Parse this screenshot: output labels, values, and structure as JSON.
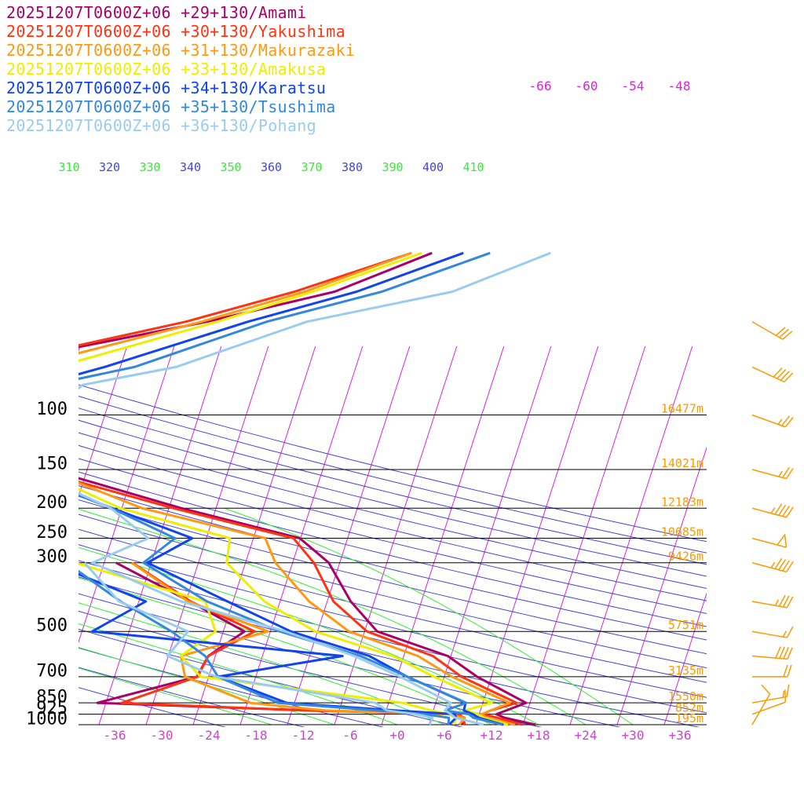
{
  "chart_data": {
    "type": "line",
    "chart_kind": "skew-T log-P sounding",
    "yscale": "log",
    "pressure_levels": [
      100,
      150,
      200,
      250,
      300,
      500,
      700,
      850,
      925,
      1000
    ],
    "pressure_labels": [
      "100",
      "150",
      "200",
      "250",
      "300",
      "500",
      "700",
      "850",
      "925",
      "1000"
    ],
    "heights": [
      {
        "p": 100,
        "label": "16477m"
      },
      {
        "p": 150,
        "label": "14021m"
      },
      {
        "p": 200,
        "label": "12183m"
      },
      {
        "p": 250,
        "label": "10685m"
      },
      {
        "p": 300,
        "label": "9426m"
      },
      {
        "p": 500,
        "label": "5751m"
      },
      {
        "p": 700,
        "label": "3135m"
      },
      {
        "p": 850,
        "label": "1550m"
      },
      {
        "p": 925,
        "label": "852m"
      },
      {
        "p": 1000,
        "label": "195m"
      }
    ],
    "temperature_ticks": [
      "-36",
      "-30",
      "-24",
      "-18",
      "-12",
      "-6",
      "+0",
      "+6",
      "+12",
      "+18",
      "+24",
      "+30",
      "+36"
    ],
    "upper_isotherm_labels": [
      "-66",
      "-60",
      "-54",
      "-48"
    ],
    "theta_labels": [
      "310",
      "320",
      "330",
      "340",
      "350",
      "360",
      "370",
      "380",
      "390",
      "400",
      "410"
    ],
    "grid": true,
    "legend_position": "top-left",
    "colors": {
      "isotherm": "#dd22dd",
      "dry_adiabat": "#4444dd",
      "moist_adiabat": "#33ee33",
      "isobar": "#000000",
      "height_label": "#ff9900",
      "wind_barb": "#ff9900",
      "temperature_tick": "#cc44cc",
      "pressure_label": "#000000"
    },
    "series": [
      {
        "name": "20251207T0600Z+06 +29+130/Amami",
        "color": "#aa0066",
        "temperature": [
          [
            1000,
            17.6
          ],
          [
            950,
            13.4
          ],
          [
            925,
            12.2
          ],
          [
            900,
            13.3
          ],
          [
            850,
            15.5
          ],
          [
            700,
            8.2
          ],
          [
            600,
            3.6
          ],
          [
            500,
            -6.4
          ],
          [
            400,
            -11.0
          ],
          [
            300,
            -15.4
          ],
          [
            250,
            -20.1
          ],
          [
            200,
            -36.4
          ],
          [
            150,
            -54.9
          ],
          [
            100,
            -67.0
          ],
          [
            80,
            -70.8
          ],
          [
            70,
            -68.2
          ],
          [
            50,
            -40.8
          ],
          [
            40,
            -25.8
          ],
          [
            30,
            -15.0
          ]
        ],
        "dewpoint": [
          [
            1000,
            8.2
          ],
          [
            950,
            8.3
          ],
          [
            925,
            7.1
          ],
          [
            900,
            -11.6
          ],
          [
            850,
            -39.1
          ],
          [
            700,
            -27.5
          ],
          [
            600,
            -26.9
          ],
          [
            500,
            -23.3
          ],
          [
            400,
            -31.5
          ],
          [
            300,
            -42.5
          ]
        ]
      },
      {
        "name": "20251207T0600Z+06 +30+130/Yakushima",
        "color": "#ff3311",
        "temperature": [
          [
            1000,
            15.9
          ],
          [
            950,
            12.5
          ],
          [
            925,
            10.5
          ],
          [
            900,
            11.3
          ],
          [
            850,
            14.3
          ],
          [
            700,
            6.2
          ],
          [
            600,
            1.7
          ],
          [
            500,
            -7.7
          ],
          [
            400,
            -13.2
          ],
          [
            300,
            -17.3
          ],
          [
            250,
            -20.9
          ],
          [
            200,
            -37.4
          ],
          [
            150,
            -56.8
          ],
          [
            100,
            -65.5
          ],
          [
            80,
            -69.3
          ],
          [
            70,
            -67.8
          ],
          [
            50,
            -43.5
          ],
          [
            40,
            -30.9
          ],
          [
            30,
            -17.6
          ]
        ],
        "dewpoint": [
          [
            1000,
            8.6
          ],
          [
            950,
            8.1
          ],
          [
            925,
            7.4
          ],
          [
            900,
            -12.4
          ],
          [
            850,
            -36.0
          ],
          [
            700,
            -27.4
          ],
          [
            600,
            -26.9
          ],
          [
            500,
            -22.0
          ],
          [
            400,
            -31.4
          ],
          [
            300,
            -40.4
          ]
        ]
      },
      {
        "name": "20251207T0600Z+06 +31+130/Makurazaki",
        "color": "#ff9911",
        "temperature": [
          [
            1000,
            15.0
          ],
          [
            950,
            11.1
          ],
          [
            925,
            10.3
          ],
          [
            900,
            11.3
          ],
          [
            850,
            13.4
          ],
          [
            700,
            5.0
          ],
          [
            600,
            -0.2
          ],
          [
            500,
            -10.0
          ],
          [
            400,
            -16.3
          ],
          [
            300,
            -22.2
          ],
          [
            250,
            -24.5
          ],
          [
            200,
            -41.4
          ],
          [
            150,
            -55.4
          ],
          [
            100,
            -60.8
          ],
          [
            80,
            -64.6
          ],
          [
            70,
            -62.2
          ],
          [
            50,
            -41.5
          ],
          [
            40,
            -29.6
          ],
          [
            30,
            -17.6
          ]
        ],
        "dewpoint": [
          [
            1000,
            7.9
          ],
          [
            950,
            8.3
          ],
          [
            925,
            6.0
          ],
          [
            900,
            -9.7
          ],
          [
            850,
            -19.6
          ],
          [
            700,
            -29.0
          ],
          [
            600,
            -30.4
          ],
          [
            500,
            -20.3
          ],
          [
            400,
            -31.7
          ],
          [
            300,
            -40.5
          ]
        ]
      },
      {
        "name": "20251207T0600Z+06 +33+130/Amakusa",
        "color": "#eeee00",
        "temperature": [
          [
            1000,
            14.1
          ],
          [
            950,
            10.7
          ],
          [
            925,
            9.9
          ],
          [
            900,
            8.0
          ],
          [
            850,
            11.1
          ],
          [
            700,
            2.7
          ],
          [
            600,
            -3.4
          ],
          [
            500,
            -14.3
          ],
          [
            400,
            -22.0
          ],
          [
            300,
            -28.4
          ],
          [
            250,
            -29.0
          ],
          [
            200,
            -44.2
          ],
          [
            150,
            -56.5
          ],
          [
            100,
            -59.2
          ],
          [
            80,
            -62.2
          ],
          [
            70,
            -58.1
          ],
          [
            50,
            -39.5
          ],
          [
            40,
            -28.6
          ],
          [
            30,
            -16.3
          ]
        ],
        "dewpoint": [
          [
            1000,
            7.1
          ],
          [
            950,
            7.3
          ],
          [
            925,
            6.0
          ],
          [
            900,
            3.8
          ],
          [
            850,
            -0.2
          ],
          [
            700,
            -27.0
          ],
          [
            600,
            -30.4
          ],
          [
            500,
            -27.0
          ],
          [
            400,
            -29.5
          ],
          [
            300,
            -47.7
          ]
        ]
      },
      {
        "name": "20251207T0600Z+06 +34+130/Karatsu",
        "color": "#1144ee",
        "temperature": [
          [
            1000,
            13.5
          ],
          [
            950,
            10.1
          ],
          [
            925,
            9.2
          ],
          [
            900,
            7.9
          ],
          [
            850,
            7.8
          ],
          [
            700,
            -0.7
          ],
          [
            600,
            -6.4
          ],
          [
            500,
            -17.4
          ],
          [
            400,
            -26.7
          ],
          [
            300,
            -38.5
          ],
          [
            250,
            -33.8
          ],
          [
            200,
            -45.2
          ],
          [
            150,
            -59.6
          ],
          [
            100,
            -56.7
          ],
          [
            80,
            -59.6
          ],
          [
            70,
            -52.0
          ],
          [
            50,
            -35.6
          ],
          [
            40,
            -23.0
          ],
          [
            30,
            -11.0
          ]
        ],
        "dewpoint": [
          [
            1000,
            6.6
          ],
          [
            950,
            7.2
          ],
          [
            925,
            6.9
          ],
          [
            900,
            -0.8
          ],
          [
            850,
            -15.0
          ],
          [
            700,
            -24.8
          ],
          [
            600,
            -9.8
          ],
          [
            500,
            -42.7
          ],
          [
            400,
            -37.1
          ],
          [
            300,
            -50.9
          ]
        ]
      },
      {
        "name": "20251207T0600Z+06 +35+130/Tsushima",
        "color": "#3388dd",
        "temperature": [
          [
            1000,
            13.4
          ],
          [
            950,
            9.4
          ],
          [
            925,
            8.7
          ],
          [
            900,
            5.5
          ],
          [
            850,
            7.9
          ],
          [
            700,
            -0.7
          ],
          [
            600,
            -7.5
          ],
          [
            500,
            -18.8
          ],
          [
            400,
            -29.3
          ],
          [
            300,
            -39.0
          ],
          [
            250,
            -36.0
          ],
          [
            200,
            -45.3
          ],
          [
            150,
            -58.9
          ],
          [
            100,
            -57.3
          ],
          [
            80,
            -58.3
          ],
          [
            70,
            -48.2
          ],
          [
            50,
            -33.2
          ],
          [
            40,
            -19.8
          ],
          [
            30,
            -7.6
          ]
        ],
        "dewpoint": [
          [
            1000,
            6.5
          ],
          [
            950,
            6.3
          ],
          [
            925,
            3.1
          ],
          [
            900,
            -3.1
          ],
          [
            850,
            -16.1
          ],
          [
            700,
            -24.8
          ],
          [
            600,
            -27.3
          ],
          [
            500,
            -32.6
          ],
          [
            400,
            -40.3
          ],
          [
            300,
            -48.8
          ]
        ]
      },
      {
        "name": "20251207T0600Z+06 +36+130/Pohang",
        "color": "#99ccee",
        "temperature": [
          [
            1000,
            11.0
          ],
          [
            950,
            7.1
          ],
          [
            925,
            6.4
          ],
          [
            900,
            5.5
          ],
          [
            850,
            5.9
          ],
          [
            700,
            -1.6
          ],
          [
            600,
            -8.3
          ],
          [
            500,
            -18.1
          ],
          [
            400,
            -32.6
          ],
          [
            300,
            -45.5
          ],
          [
            250,
            -39.4
          ],
          [
            200,
            -45.4
          ],
          [
            150,
            -57.7
          ],
          [
            100,
            -57.0
          ],
          [
            80,
            -54.1
          ],
          [
            70,
            -42.9
          ],
          [
            50,
            -28.1
          ],
          [
            40,
            -10.8
          ],
          [
            30,
            0.1
          ]
        ],
        "dewpoint": [
          [
            1000,
            4.1
          ],
          [
            950,
            4.2
          ],
          [
            925,
            1.9
          ],
          [
            900,
            -1.9
          ],
          [
            850,
            -3.7
          ],
          [
            700,
            -25.1
          ],
          [
            600,
            -32.1
          ],
          [
            500,
            -30.5
          ],
          [
            400,
            -40.5
          ],
          [
            300,
            -46.5
          ]
        ]
      }
    ],
    "wind_barbs": [
      {
        "p": 1000,
        "dir": 210,
        "spd": 10
      },
      {
        "p": 925,
        "dir": 250,
        "spd": 10
      },
      {
        "p": 850,
        "dir": 260,
        "spd": 15
      },
      {
        "p": 700,
        "dir": 270,
        "spd": 20
      },
      {
        "p": 600,
        "dir": 275,
        "spd": 40
      },
      {
        "p": 500,
        "dir": 280,
        "spd": 15
      },
      {
        "p": 400,
        "dir": 280,
        "spd": 35
      },
      {
        "p": 300,
        "dir": 285,
        "spd": 45
      },
      {
        "p": 250,
        "dir": 285,
        "spd": 50
      },
      {
        "p": 200,
        "dir": 285,
        "spd": 45
      },
      {
        "p": 150,
        "dir": 285,
        "spd": 25
      },
      {
        "p": 100,
        "dir": 290,
        "spd": 25
      },
      {
        "p": 70,
        "dir": 295,
        "spd": 40
      },
      {
        "p": 50,
        "dir": 300,
        "spd": 30
      }
    ]
  }
}
